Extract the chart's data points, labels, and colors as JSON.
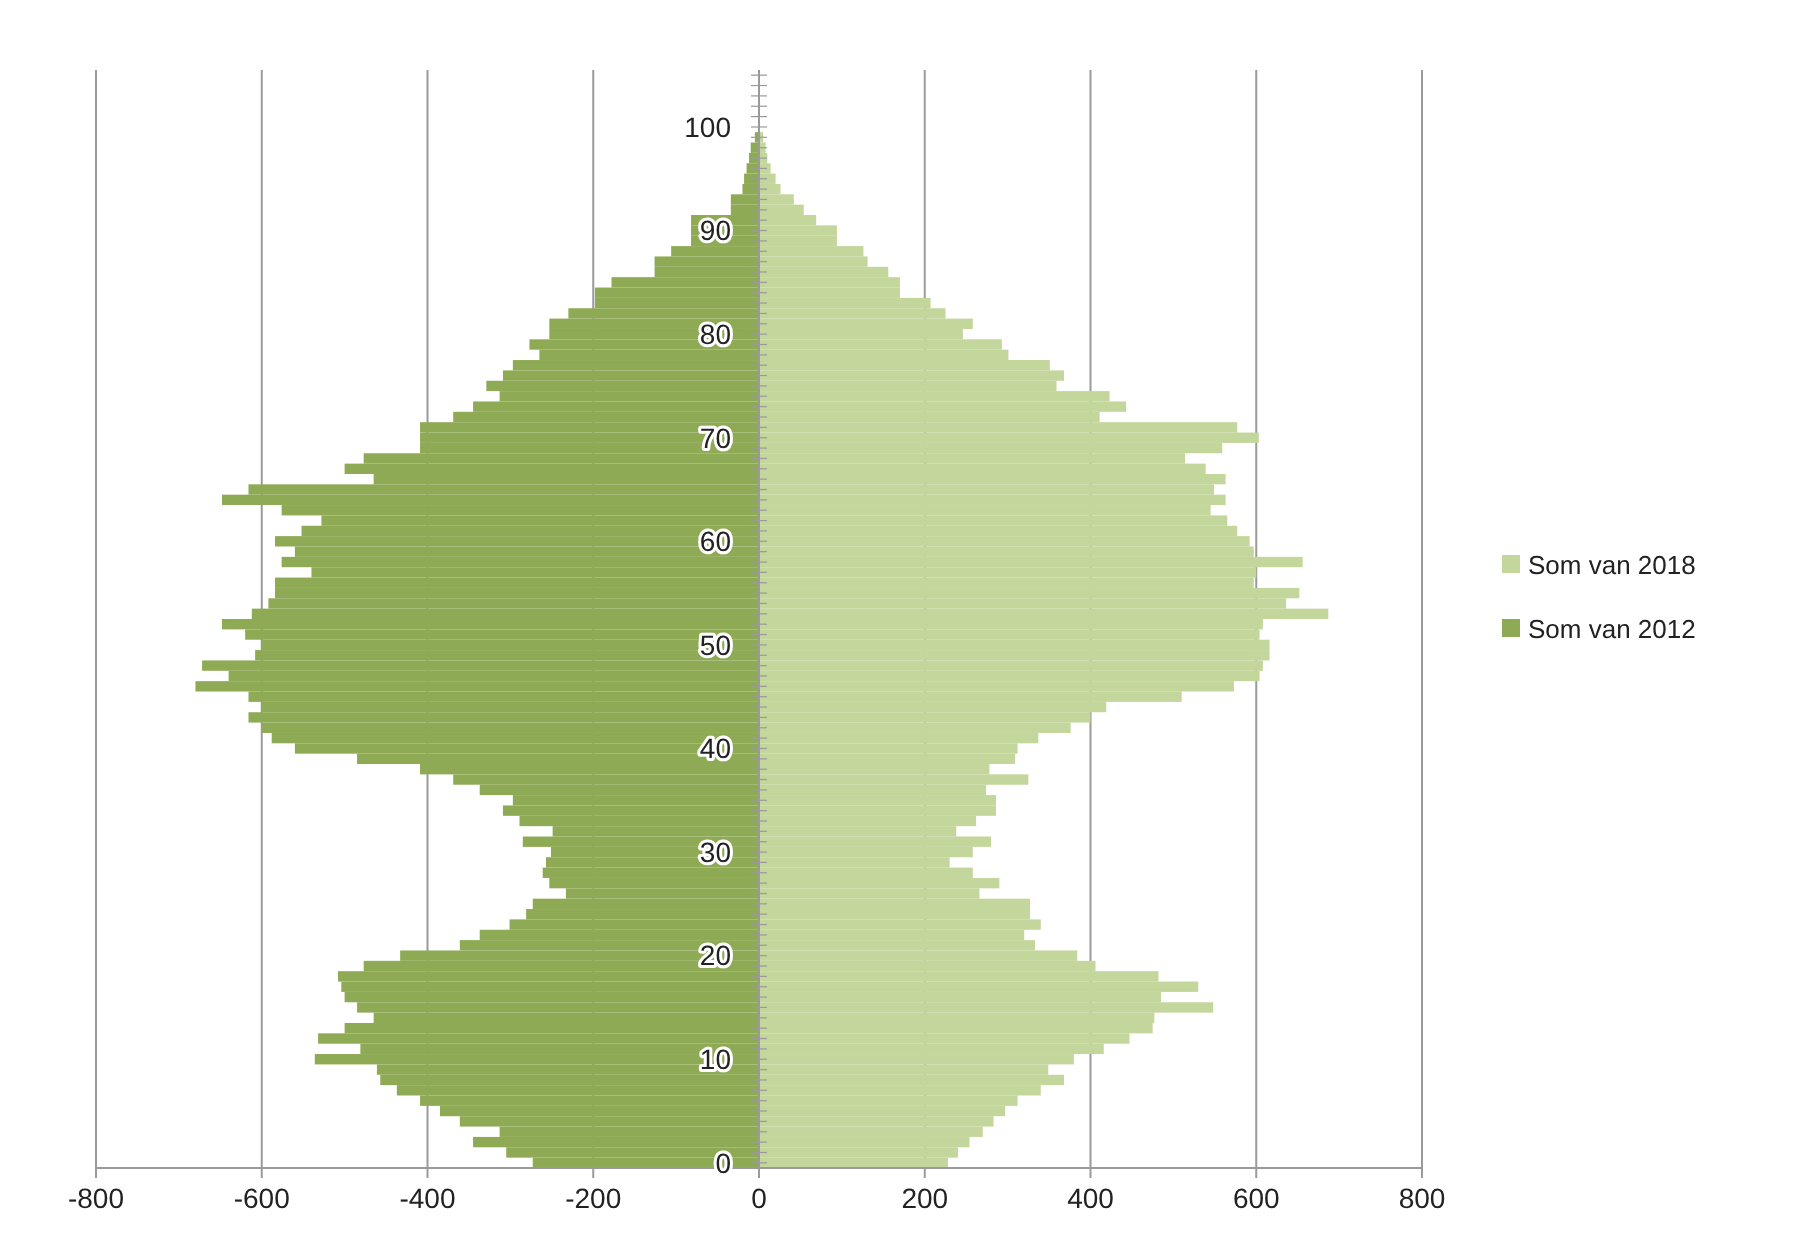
{
  "chart_data": {
    "type": "bar",
    "orientation": "horizontal",
    "categories": [
      null,
      null,
      null,
      null,
      null,
      "100",
      null,
      null,
      null,
      null,
      null,
      null,
      null,
      null,
      null,
      "90",
      null,
      null,
      null,
      null,
      null,
      null,
      null,
      null,
      null,
      "80",
      null,
      null,
      null,
      null,
      null,
      null,
      null,
      null,
      null,
      "70",
      null,
      null,
      null,
      null,
      null,
      null,
      null,
      null,
      null,
      "60",
      null,
      null,
      null,
      null,
      null,
      null,
      null,
      null,
      null,
      "50",
      null,
      null,
      null,
      null,
      null,
      null,
      null,
      null,
      null,
      "40",
      null,
      null,
      null,
      null,
      null,
      null,
      null,
      null,
      null,
      "30",
      null,
      null,
      null,
      null,
      null,
      null,
      null,
      null,
      null,
      "20",
      null,
      null,
      null,
      null,
      null,
      null,
      null,
      null,
      null,
      "10",
      null,
      null,
      null,
      null,
      null,
      null,
      null,
      null,
      null,
      "0"
    ],
    "series": [
      {
        "name": "Som van 2018",
        "color": "#c3d69b",
        "values": [
          null,
          null,
          null,
          null,
          null,
          null,
          5,
          8,
          10,
          14,
          20,
          26,
          42,
          54,
          69,
          94,
          94,
          126,
          131,
          156,
          170,
          170,
          207,
          225,
          258,
          246,
          293,
          301,
          351,
          368,
          359,
          423,
          443,
          411,
          577,
          603,
          559,
          514,
          539,
          563,
          549,
          563,
          545,
          565,
          577,
          592,
          597,
          656,
          600,
          597,
          652,
          636,
          687,
          608,
          604,
          616,
          616,
          608,
          604,
          573,
          510,
          419,
          400,
          376,
          337,
          312,
          309,
          278,
          325,
          274,
          286,
          286,
          262,
          238,
          280,
          258,
          230,
          258,
          290,
          266,
          327,
          327,
          340,
          320,
          333,
          384,
          406,
          482,
          530,
          485,
          548,
          477,
          475,
          447,
          416,
          380,
          349,
          368,
          340,
          312,
          297,
          283,
          270,
          254,
          240,
          228
        ]
      },
      {
        "name": "Som van 2012",
        "color": "#8faa55",
        "values": [
          null,
          null,
          null,
          null,
          null,
          null,
          -5,
          -10,
          -12,
          -15,
          -18,
          -20,
          -34,
          -34,
          -82,
          -82,
          -82,
          -106,
          -126,
          -126,
          -178,
          -198,
          -198,
          -230,
          -253,
          -253,
          -277,
          -265,
          -297,
          -309,
          -329,
          -313,
          -345,
          -369,
          -409,
          -409,
          -409,
          -477,
          -500,
          -465,
          -616,
          -648,
          -576,
          -528,
          -552,
          -584,
          -560,
          -576,
          -540,
          -584,
          -584,
          -592,
          -612,
          -648,
          -620,
          -600,
          -608,
          -672,
          -640,
          -680,
          -616,
          -600,
          -616,
          -600,
          -588,
          -560,
          -485,
          -409,
          -369,
          -337,
          -297,
          -309,
          -289,
          -249,
          -285,
          -251,
          -257,
          -261,
          -253,
          -233,
          -273,
          -281,
          -301,
          -337,
          -361,
          -433,
          -477,
          -508,
          -504,
          -500,
          -485,
          -465,
          -500,
          -532,
          -481,
          -536,
          -461,
          -457,
          -437,
          -409,
          -385,
          -361,
          -313,
          -345,
          -305,
          -273
        ]
      }
    ],
    "xlim": [
      -800,
      800
    ],
    "xticks": [
      -800,
      -600,
      -400,
      -200,
      0,
      200,
      400,
      600,
      800
    ],
    "grid": "x",
    "legend": "right",
    "stacked": true
  }
}
